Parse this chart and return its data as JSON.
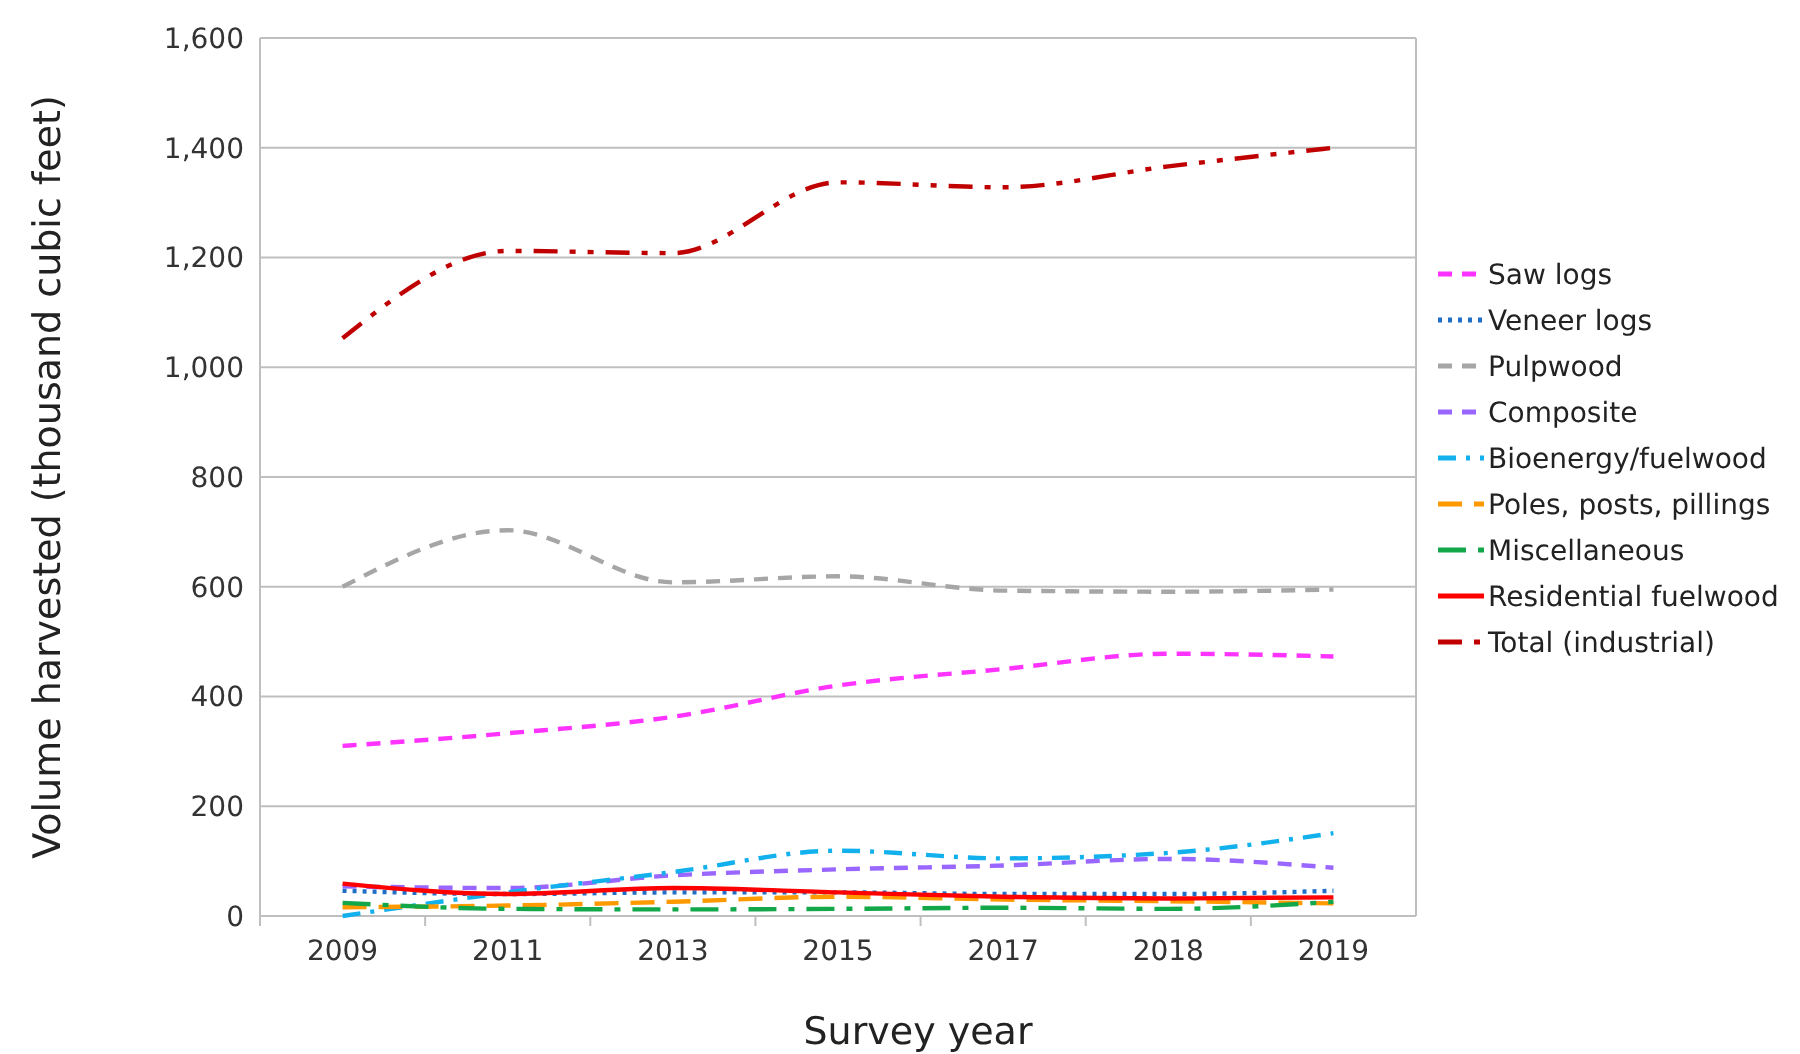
{
  "chart_data": {
    "type": "line",
    "xlabel": "Survey year",
    "ylabel": "Volume harvested (thousand cubic feet)",
    "categories": [
      "2009",
      "2011",
      "2013",
      "2015",
      "2017",
      "2018",
      "2019"
    ],
    "ylim": [
      0,
      1600
    ],
    "yticks": [
      {
        "value": 0,
        "label": "0"
      },
      {
        "value": 200,
        "label": "200"
      },
      {
        "value": 400,
        "label": "400"
      },
      {
        "value": 600,
        "label": "600"
      },
      {
        "value": 800,
        "label": "800"
      },
      {
        "value": 1000,
        "label": "1,000"
      },
      {
        "value": 1200,
        "label": "1,200"
      },
      {
        "value": 1400,
        "label": "1,400"
      },
      {
        "value": 1600,
        "label": "1,600"
      }
    ],
    "grid": "y",
    "legend": "right",
    "marker": "none",
    "series": [
      {
        "name": "Saw logs",
        "color": "#ff33ff",
        "line_style": "dashed",
        "values": [
          310,
          333,
          363,
          420,
          450,
          478,
          473
        ]
      },
      {
        "name": "Veneer logs",
        "color": "#1f6fc9",
        "line_style": "dotted",
        "values": [
          46,
          40,
          43,
          43,
          40,
          40,
          46
        ]
      },
      {
        "name": "Pulpwood",
        "color": "#a6a6a6",
        "line_style": "dashed",
        "values": [
          600,
          703,
          608,
          619,
          593,
          591,
          595
        ]
      },
      {
        "name": "Composite",
        "color": "#9966ff",
        "line_style": "dashed",
        "values": [
          54,
          51,
          74,
          85,
          92,
          104,
          88
        ]
      },
      {
        "name": "Bioenergy/fuelwood",
        "color": "#12b0ec",
        "line_style": "dashdot",
        "values": [
          0,
          43,
          80,
          119,
          105,
          115,
          151
        ]
      },
      {
        "name": "Poles, posts, pillings",
        "color": "#ff9900",
        "line_style": "longdash",
        "values": [
          16,
          19,
          26,
          35,
          30,
          27,
          23
        ]
      },
      {
        "name": "Miscellaneous",
        "color": "#12a84a",
        "line_style": "longdashdot",
        "values": [
          24,
          13,
          12,
          13,
          15,
          13,
          26
        ]
      },
      {
        "name": "Residential fuelwood",
        "color": "#ff0000",
        "line_style": "solid",
        "values": [
          59,
          40,
          51,
          43,
          35,
          32,
          34
        ]
      },
      {
        "name": "Total (industrial)",
        "color": "#c00000",
        "line_style": "dashdotdot",
        "values": [
          1053,
          1212,
          1208,
          1337,
          1328,
          1366,
          1400
        ]
      }
    ]
  }
}
